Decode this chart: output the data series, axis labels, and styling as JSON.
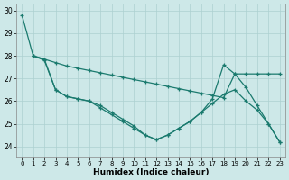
{
  "xlabel": "Humidex (Indice chaleur)",
  "xlim": [
    -0.5,
    23.5
  ],
  "ylim": [
    23.5,
    30.3
  ],
  "yticks": [
    24,
    25,
    26,
    27,
    28,
    29,
    30
  ],
  "xticks": [
    0,
    1,
    2,
    3,
    4,
    5,
    6,
    7,
    8,
    9,
    10,
    11,
    12,
    13,
    14,
    15,
    16,
    17,
    18,
    19,
    20,
    21,
    22,
    23
  ],
  "bg_color": "#cde8e8",
  "grid_color": "#add0d0",
  "line_color": "#1a7a6e",
  "series1_x": [
    1,
    2,
    3,
    4,
    5,
    6,
    7,
    8,
    9,
    10,
    11,
    12,
    13,
    14,
    15,
    16,
    17,
    18,
    19,
    20,
    21,
    22,
    23
  ],
  "series1_y": [
    28.0,
    27.85,
    27.7,
    27.55,
    27.45,
    27.35,
    27.25,
    27.15,
    27.05,
    26.95,
    26.85,
    26.75,
    26.65,
    26.55,
    26.45,
    26.35,
    26.25,
    26.15,
    27.2,
    27.2,
    27.2,
    27.2,
    27.2
  ],
  "series2_x": [
    1,
    2,
    3,
    4,
    5,
    6,
    7,
    8,
    9,
    10,
    11,
    12,
    13,
    14,
    15,
    16,
    17,
    18,
    19,
    20,
    21,
    22,
    23
  ],
  "series2_y": [
    28.0,
    27.8,
    26.5,
    26.2,
    26.1,
    26.0,
    25.8,
    25.5,
    25.2,
    24.9,
    24.5,
    24.3,
    24.5,
    24.8,
    25.1,
    25.5,
    26.1,
    27.6,
    27.2,
    26.6,
    25.8,
    25.0,
    24.2
  ],
  "series3_x": [
    0,
    1,
    2,
    3,
    4,
    5,
    6,
    7,
    8,
    9,
    10,
    11,
    12,
    13,
    14,
    15,
    16,
    17,
    18,
    19,
    20,
    21,
    22,
    23
  ],
  "series3_y": [
    29.8,
    28.0,
    27.85,
    26.5,
    26.2,
    26.1,
    26.0,
    25.7,
    25.4,
    25.1,
    24.8,
    24.5,
    24.3,
    24.5,
    24.8,
    25.1,
    25.5,
    25.9,
    26.3,
    26.5,
    26.0,
    25.6,
    25.0,
    24.2
  ]
}
